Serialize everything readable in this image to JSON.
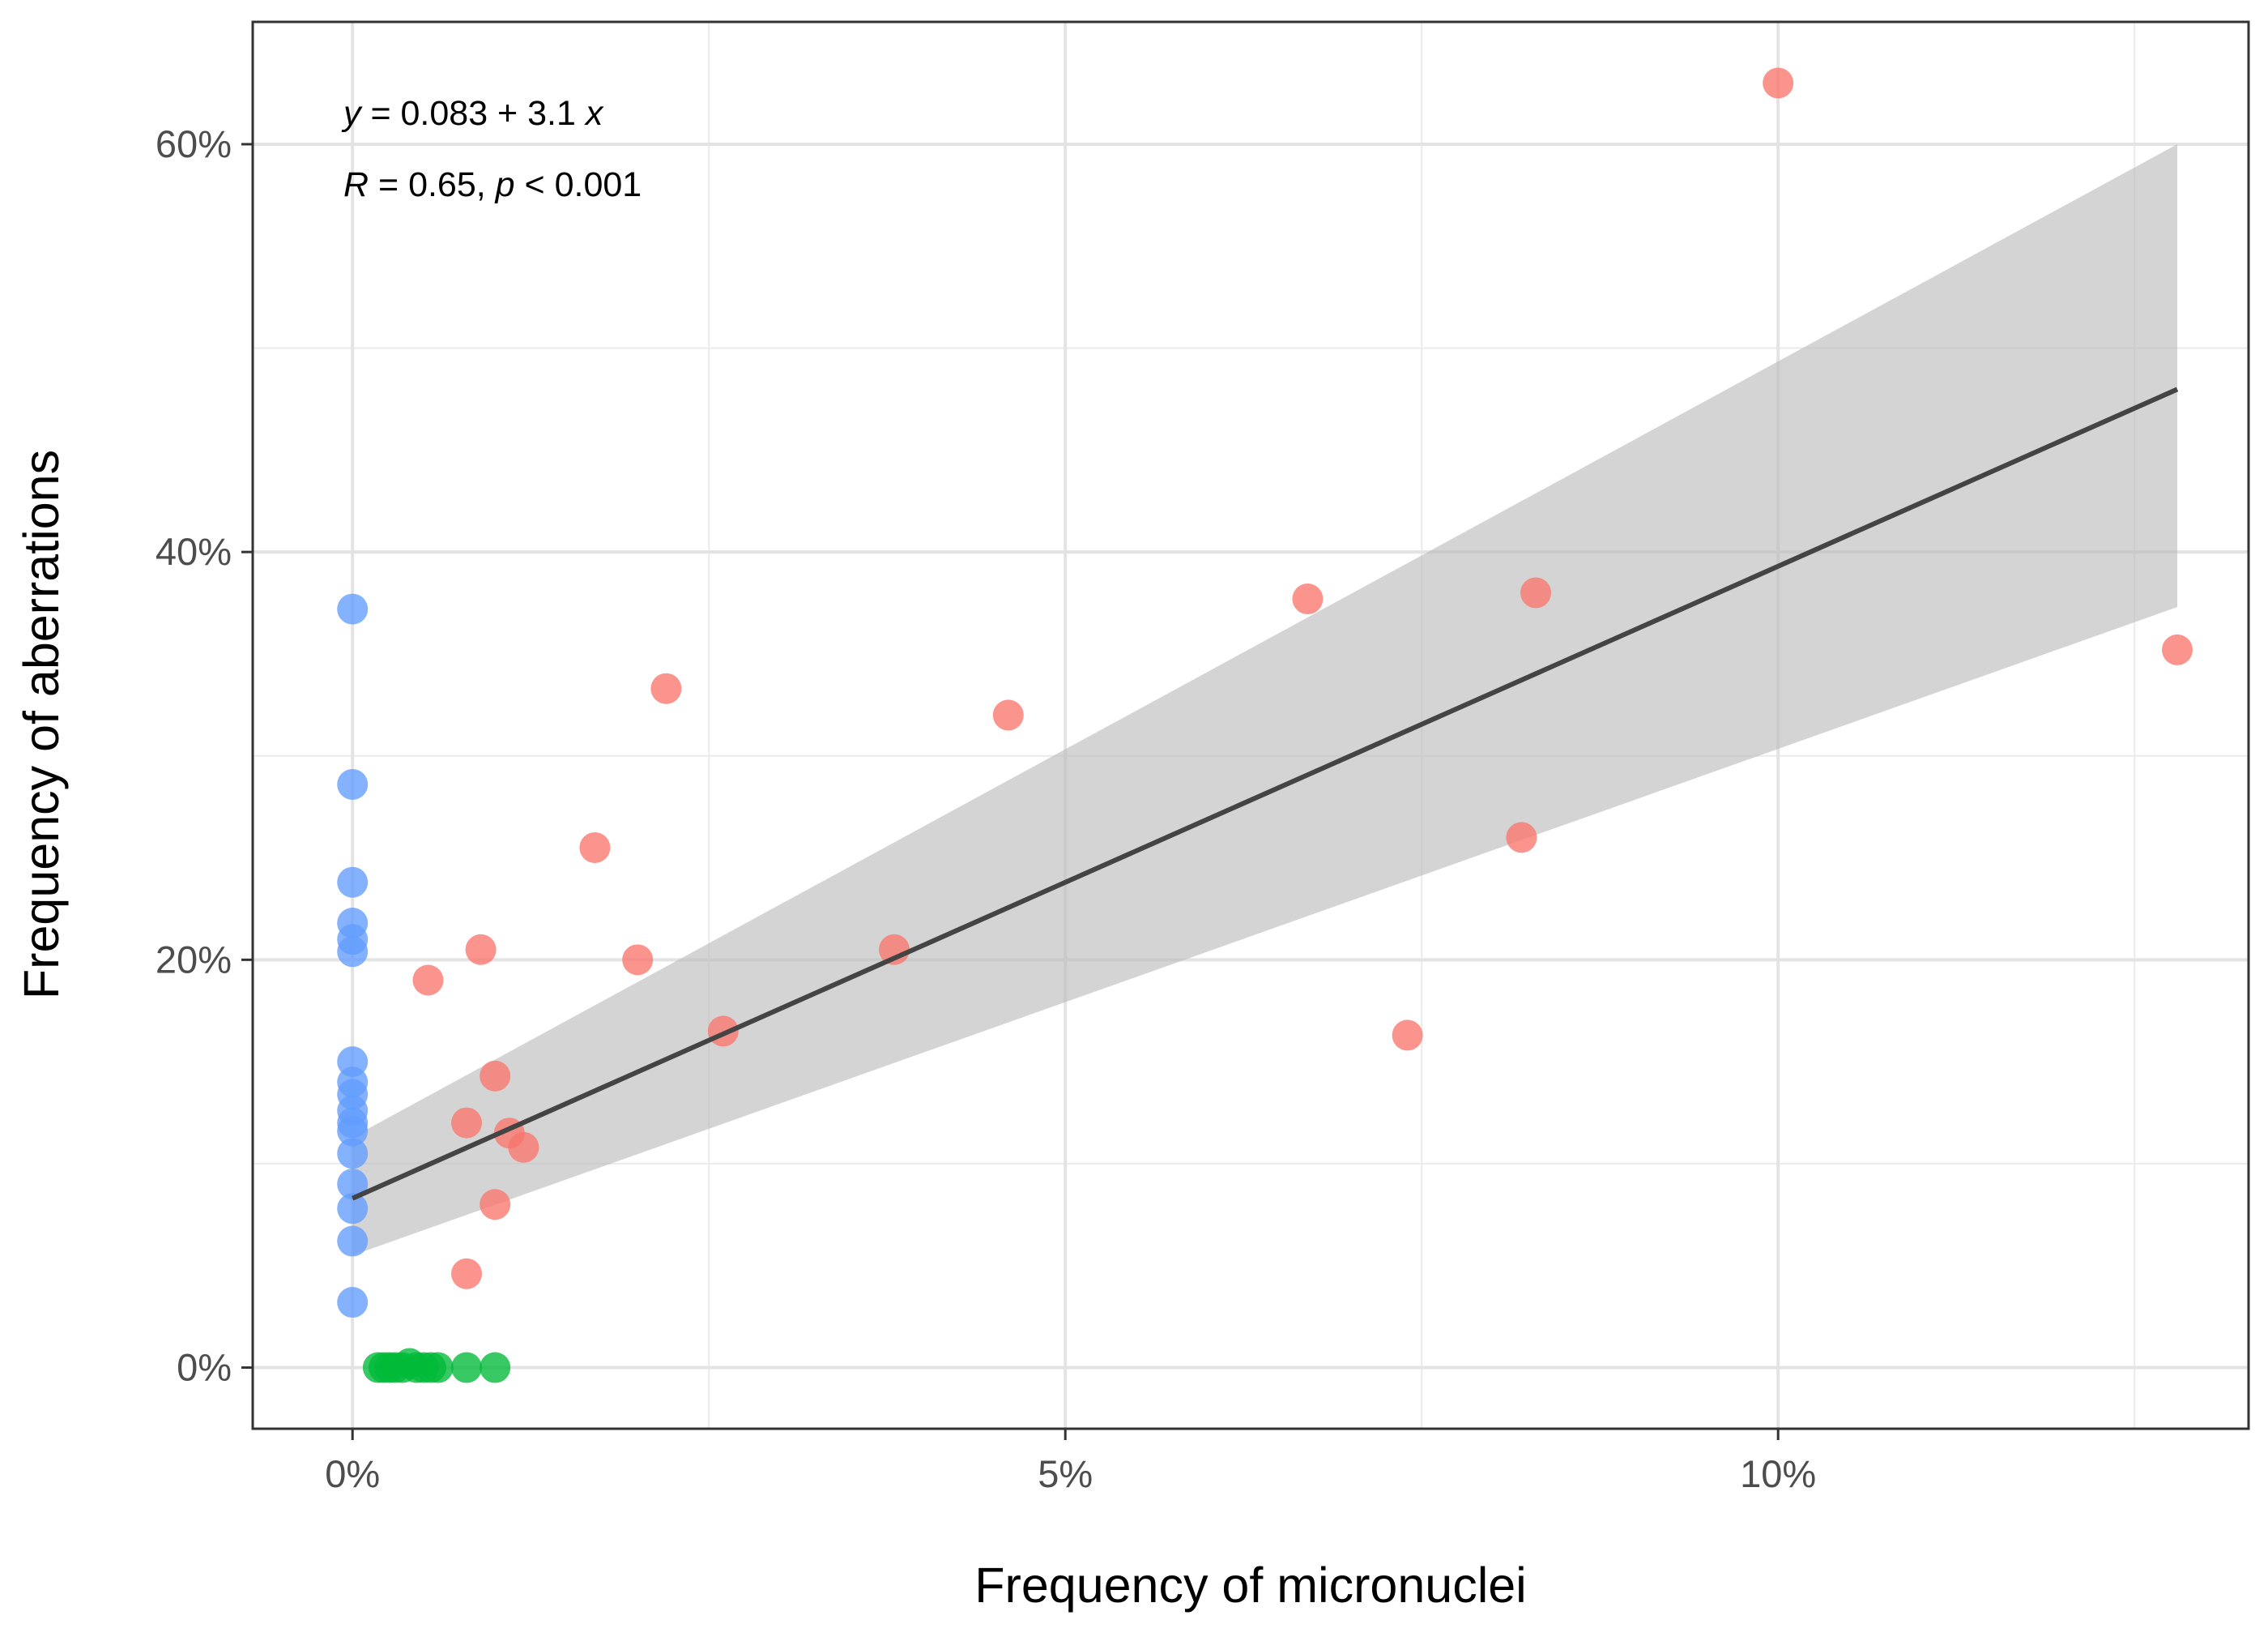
{
  "chart_data": {
    "type": "scatter",
    "title": "",
    "xlabel": "Frequency of micronuclei",
    "ylabel": "Frequency of aberrations",
    "xlim": [
      -0.007,
      0.133
    ],
    "ylim": [
      -0.03,
      0.66
    ],
    "x_ticks": [
      0,
      0.05,
      0.1
    ],
    "x_tick_labels": [
      "0%",
      "5%",
      "10%"
    ],
    "y_ticks": [
      0,
      0.2,
      0.4,
      0.6
    ],
    "y_tick_labels": [
      "0%",
      "20%",
      "40%",
      "60%"
    ],
    "x_minor_ticks": [
      0.025,
      0.075,
      0.125
    ],
    "y_minor_ticks": [
      0.1,
      0.3,
      0.5
    ],
    "grid": true,
    "legend": "none",
    "annotation": {
      "line1_var": "y",
      "line1_eq": " = 0.083 + 3.1 ",
      "line1_x": "x",
      "line2_r": "R",
      "line2_mid": " = 0.65, ",
      "line2_p": "p",
      "line2_end": " < 0.001"
    },
    "regression": {
      "intercept": 0.083,
      "slope": 3.1,
      "x_range": [
        0,
        0.128
      ],
      "ci_lower_start": 0.055,
      "ci_upper_start": 0.113,
      "ci_lower_end": 0.373,
      "ci_upper_end": 0.6,
      "line_color": "#444444",
      "band_color": "#bdbdbd"
    },
    "series": [
      {
        "name": "blue",
        "color": "#619CFF",
        "points": [
          [
            0,
            0.372
          ],
          [
            0,
            0.286
          ],
          [
            0,
            0.238
          ],
          [
            0,
            0.218
          ],
          [
            0,
            0.21
          ],
          [
            0,
            0.204
          ],
          [
            0,
            0.15
          ],
          [
            0,
            0.14
          ],
          [
            0,
            0.134
          ],
          [
            0,
            0.126
          ],
          [
            0,
            0.12
          ],
          [
            0,
            0.116
          ],
          [
            0,
            0.105
          ],
          [
            0,
            0.09
          ],
          [
            0,
            0.078
          ],
          [
            0,
            0.062
          ],
          [
            0,
            0.032
          ]
        ]
      },
      {
        "name": "red",
        "color": "#F8766D",
        "points": [
          [
            0.1,
            0.63
          ],
          [
            0.128,
            0.352
          ],
          [
            0.067,
            0.377
          ],
          [
            0.083,
            0.38
          ],
          [
            0.046,
            0.32
          ],
          [
            0.022,
            0.333
          ],
          [
            0.017,
            0.255
          ],
          [
            0.082,
            0.26
          ],
          [
            0.009,
            0.205
          ],
          [
            0.02,
            0.2
          ],
          [
            0.0053,
            0.19
          ],
          [
            0.038,
            0.205
          ],
          [
            0.026,
            0.165
          ],
          [
            0.074,
            0.163
          ],
          [
            0.01,
            0.143
          ],
          [
            0.008,
            0.12
          ],
          [
            0.011,
            0.115
          ],
          [
            0.012,
            0.108
          ],
          [
            0.01,
            0.08
          ],
          [
            0.008,
            0.046
          ]
        ]
      },
      {
        "name": "green",
        "color": "#00BA38",
        "points": [
          [
            0.0018,
            0
          ],
          [
            0.0022,
            0
          ],
          [
            0.0026,
            0
          ],
          [
            0.003,
            0
          ],
          [
            0.0035,
            0
          ],
          [
            0.004,
            0.002
          ],
          [
            0.0045,
            0
          ],
          [
            0.005,
            0
          ],
          [
            0.0055,
            0
          ],
          [
            0.006,
            0
          ],
          [
            0.008,
            0
          ],
          [
            0.01,
            0
          ]
        ]
      }
    ]
  }
}
